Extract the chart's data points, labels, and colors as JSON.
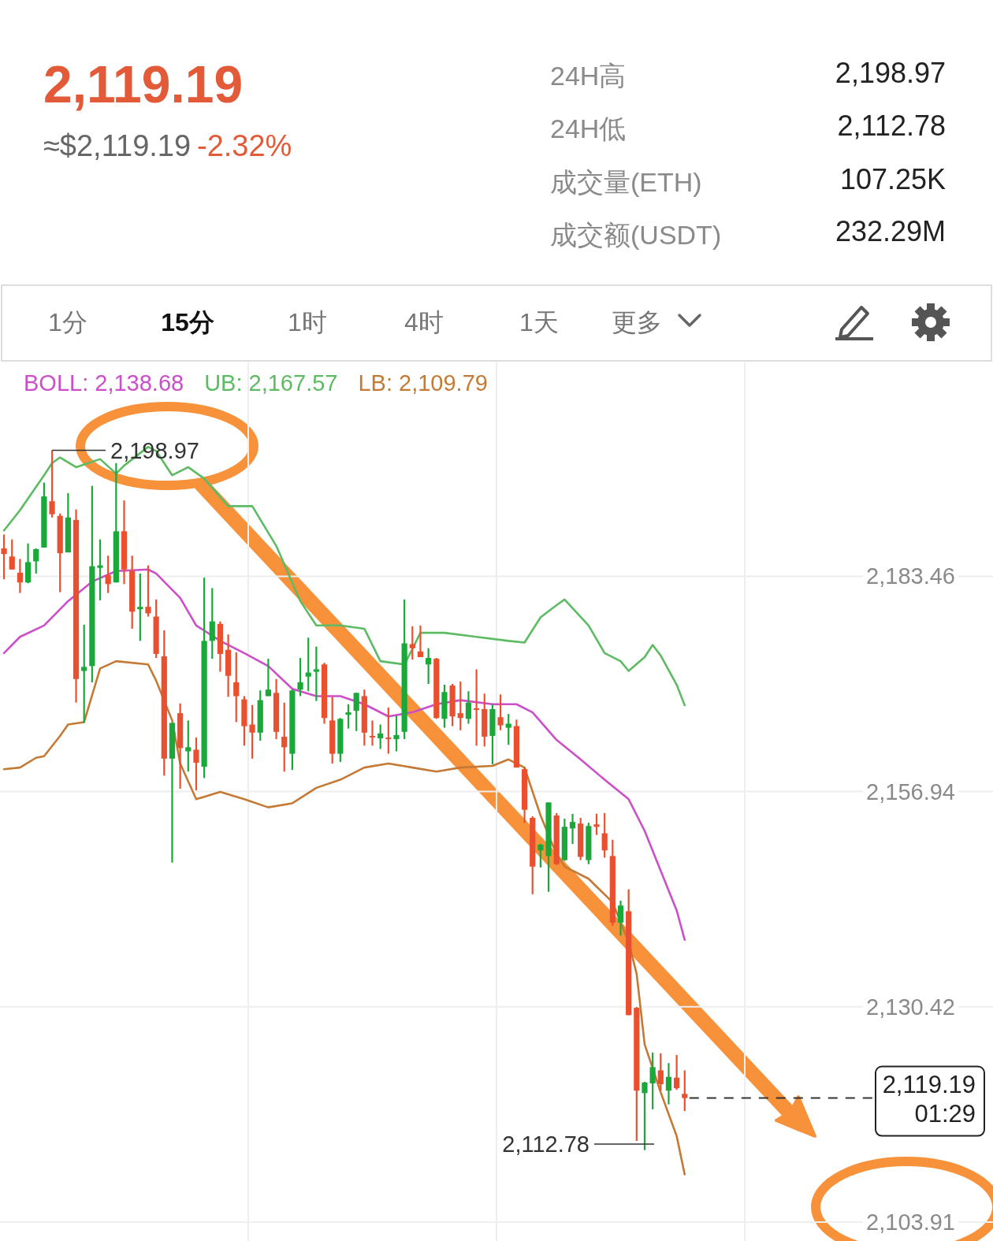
{
  "chart_data": {
    "type": "candlestick",
    "categories": [
      null,
      null,
      null,
      null,
      null,
      null,
      null,
      null,
      null,
      null,
      null,
      null,
      null,
      null,
      null,
      null,
      null,
      null,
      null,
      null,
      null,
      null,
      null,
      null,
      null,
      null,
      null,
      null,
      null,
      null,
      null,
      null,
      null,
      null,
      null,
      null,
      null,
      null,
      null,
      null,
      null,
      null,
      null,
      null,
      null,
      null,
      null,
      null,
      null,
      null,
      null,
      null,
      null,
      null,
      null,
      null,
      null,
      null,
      null,
      null,
      null,
      null,
      null,
      null,
      null,
      null,
      null,
      null,
      null,
      null,
      null,
      null,
      null,
      null,
      null,
      null,
      null,
      null,
      null,
      null,
      null,
      null,
      null,
      null,
      null,
      null,
      null,
      null,
      null,
      null,
      null,
      null,
      null,
      null,
      null,
      null,
      null,
      null,
      null,
      null,
      null,
      null,
      null,
      null,
      null,
      null,
      null,
      null,
      null,
      null,
      null,
      null,
      null,
      null,
      null,
      null,
      null,
      null,
      null,
      null,
      null,
      null,
      null,
      null
    ],
    "ohlc": [
      [
        2186.9,
        2188.6,
        2183.1,
        2186.2
      ],
      [
        2185.9,
        2188.0,
        2184.3,
        2184.3
      ],
      [
        2183.9,
        2185.6,
        2181.4,
        2182.7
      ],
      [
        2182.7,
        2187.5,
        2182.6,
        2185.2
      ],
      [
        2185.3,
        2186.9,
        2183.8,
        2186.8
      ],
      [
        2187.0,
        2195.0,
        2187.0,
        2193.3
      ],
      [
        2192.7,
        2198.97,
        2190.7,
        2191.1
      ],
      [
        2190.9,
        2191.2,
        2181.5,
        2186.3
      ],
      [
        2186.4,
        2193.7,
        2186.4,
        2190.7
      ],
      [
        2190.4,
        2191.7,
        2167.9,
        2170.8
      ],
      [
        2171.8,
        2177.5,
        2165.4,
        2172.3
      ],
      [
        2172.4,
        2194.6,
        2170.4,
        2184.7
      ],
      [
        2184.5,
        2188.0,
        2180.5,
        2184.8
      ],
      [
        2183.6,
        2186.0,
        2181.4,
        2182.5
      ],
      [
        2182.7,
        2197.4,
        2182.7,
        2189.0
      ],
      [
        2189.0,
        2192.8,
        2182.5,
        2184.3
      ],
      [
        2184.1,
        2186.0,
        2177.0,
        2179.1
      ],
      [
        2179.4,
        2183.8,
        2175.5,
        2179.7
      ],
      [
        2179.7,
        2184.8,
        2178.5,
        2178.9
      ],
      [
        2178.5,
        2180.6,
        2173.4,
        2173.9
      ],
      [
        2173.6,
        2176.8,
        2158.9,
        2161.0
      ],
      [
        2161.0,
        2165.4,
        2148.2,
        2165.4
      ],
      [
        2166.6,
        2167.8,
        2157.3,
        2162.3
      ],
      [
        2161.9,
        2165.7,
        2159.4,
        2162.4
      ],
      [
        2162.1,
        2163.6,
        2157.1,
        2160.5
      ],
      [
        2160.0,
        2183.3,
        2158.6,
        2175.5
      ],
      [
        2175.5,
        2182.0,
        2173.3,
        2177.9
      ],
      [
        2177.6,
        2177.9,
        2171.7,
        2173.9
      ],
      [
        2174.4,
        2176.3,
        2168.6,
        2171.2
      ],
      [
        2170.4,
        2174.1,
        2165.5,
        2168.7
      ],
      [
        2168.3,
        2168.7,
        2162.6,
        2165.0
      ],
      [
        2165.2,
        2167.6,
        2161.0,
        2164.2
      ],
      [
        2164.2,
        2169.4,
        2163.2,
        2168.2
      ],
      [
        2168.7,
        2173.3,
        2168.7,
        2169.5
      ],
      [
        2169.1,
        2170.8,
        2163.4,
        2164.3
      ],
      [
        2163.7,
        2167.9,
        2159.4,
        2162.4
      ],
      [
        2161.6,
        2169.5,
        2159.6,
        2169.4
      ],
      [
        2169.5,
        2173.4,
        2168.7,
        2170.4
      ],
      [
        2171.1,
        2175.9,
        2169.3,
        2171.6
      ],
      [
        2171.7,
        2174.8,
        2168.1,
        2172.0
      ],
      [
        2172.6,
        2172.8,
        2165.3,
        2166.0
      ],
      [
        2165.7,
        2168.6,
        2160.4,
        2161.6
      ],
      [
        2161.6,
        2166.0,
        2160.6,
        2165.9
      ],
      [
        2166.4,
        2167.7,
        2164.7,
        2166.7
      ],
      [
        2166.9,
        2169.1,
        2164.4,
        2169.1
      ],
      [
        2168.7,
        2169.5,
        2162.6,
        2164.2
      ],
      [
        2163.8,
        2165.7,
        2162.6,
        2163.7
      ],
      [
        2163.5,
        2165.2,
        2162.2,
        2164.1
      ],
      [
        2163.6,
        2167.3,
        2161.6,
        2163.4
      ],
      [
        2163.4,
        2166.3,
        2161.9,
        2163.9
      ],
      [
        2164.3,
        2180.6,
        2163.4,
        2175.2
      ],
      [
        2175.1,
        2177.3,
        2173.2,
        2174.6
      ],
      [
        2174.2,
        2177.4,
        2173.5,
        2173.5
      ],
      [
        2172.6,
        2174.6,
        2170.2,
        2173.4
      ],
      [
        2173.3,
        2173.4,
        2165.9,
        2166.0
      ],
      [
        2165.9,
        2170.1,
        2164.8,
        2169.2
      ],
      [
        2170.0,
        2170.2,
        2165.0,
        2166.2
      ],
      [
        2166.6,
        2170.5,
        2164.5,
        2166.0
      ],
      [
        2165.9,
        2169.3,
        2165.3,
        2167.9
      ],
      [
        2167.2,
        2172.0,
        2162.6,
        2167.0
      ],
      [
        2167.1,
        2169.0,
        2162.5,
        2163.7
      ],
      [
        2163.8,
        2167.7,
        2160.3,
        2167.1
      ],
      [
        2166.1,
        2168.9,
        2164.5,
        2165.1
      ],
      [
        2164.8,
        2166.5,
        2162.7,
        2165.3
      ],
      [
        2165.0,
        2165.8,
        2159.9,
        2159.9
      ],
      [
        2159.7,
        2159.9,
        2153.1,
        2154.7
      ],
      [
        2153.7,
        2153.9,
        2144.3,
        2147.7
      ],
      [
        2149.7,
        2150.5,
        2147.6,
        2150.4
      ],
      [
        2149.0,
        2155.6,
        2144.6,
        2155.6
      ],
      [
        2154.0,
        2154.3,
        2147.9,
        2148.0
      ],
      [
        2148.5,
        2153.6,
        2148.4,
        2152.6
      ],
      [
        2152.4,
        2154.2,
        2150.5,
        2153.2
      ],
      [
        2153.0,
        2153.7,
        2148.5,
        2148.9
      ],
      [
        2148.5,
        2153.1,
        2148.0,
        2152.7
      ],
      [
        2152.9,
        2154.2,
        2151.6,
        2152.6
      ],
      [
        2151.8,
        2154.3,
        2148.8,
        2149.7
      ],
      [
        2149.0,
        2151.0,
        2140.4,
        2140.8
      ],
      [
        2140.8,
        2143.5,
        2139.2,
        2142.9
      ],
      [
        2142.2,
        2144.9,
        2129.4,
        2129.4
      ],
      [
        2130.3,
        2130.4,
        2113.9,
        2120.1
      ],
      [
        2119.8,
        2121.2,
        2112.78,
        2121.1
      ],
      [
        2121.0,
        2124.8,
        2117.8,
        2123.0
      ],
      [
        2122.6,
        2124.7,
        2120.1,
        2120.9
      ],
      [
        2120.1,
        2123.5,
        2118.4,
        2121.8
      ],
      [
        2121.7,
        2124.5,
        2120.2,
        2120.4
      ],
      [
        2119.7,
        2122.6,
        2117.6,
        2119.19
      ],
      null,
      null,
      null,
      null,
      null,
      null,
      null,
      null,
      null,
      null,
      null,
      null,
      null,
      null,
      null,
      null,
      null,
      null,
      null,
      null,
      null,
      null,
      null,
      null,
      null,
      null,
      null,
      null,
      null,
      null,
      null,
      null,
      null,
      null,
      null,
      null,
      null,
      null
    ],
    "series": [
      {
        "name": "BOLL: 2,138.68",
        "type": "line",
        "color": "#cc4fc9",
        "values": [
          2174.0,
          null,
          2176.0,
          null,
          null,
          2177.4,
          null,
          null,
          2180.4,
          null,
          null,
          2182.8,
          null,
          null,
          2184.1,
          null,
          null,
          null,
          2184.3,
          2183.8,
          null,
          null,
          2180.8,
          null,
          2177.4,
          null,
          null,
          2175.5,
          null,
          null,
          2174.0,
          null,
          null,
          2172.4,
          null,
          null,
          2169.6,
          null,
          null,
          2168.7,
          null,
          null,
          2168.7,
          null,
          null,
          2167.7,
          null,
          null,
          2166.2,
          null,
          null,
          2166.7,
          null,
          null,
          2167.7,
          null,
          null,
          2168.2,
          null,
          null,
          null,
          2167.7,
          null,
          null,
          2167.7,
          null,
          2166.7,
          null,
          null,
          2163.3,
          null,
          null,
          2160.9,
          null,
          null,
          2158.4,
          null,
          null,
          2156.0,
          null,
          2152.1,
          null,
          2147.2,
          null,
          2142.3,
          2138.68,
          null,
          null,
          null,
          null,
          null,
          null,
          null,
          null,
          null,
          null,
          null,
          null,
          null,
          null,
          null,
          null,
          null,
          null,
          null,
          null,
          null,
          null,
          null,
          null,
          null,
          null,
          null,
          null,
          null,
          null,
          null,
          null,
          null,
          null,
          null,
          null,
          null,
          null
        ]
      },
      {
        "name": "UB: 2,167.57",
        "type": "line",
        "color": "#5dbb63",
        "values": [
          2189.1,
          null,
          2191.6,
          null,
          null,
          2195.9,
          2197.4,
          2198.1,
          null,
          2196.9,
          null,
          null,
          2197.9,
          null,
          2196.1,
          2197.1,
          null,
          null,
          2199.4,
          2198.9,
          null,
          2195.9,
          null,
          2196.9,
          null,
          2195.5,
          null,
          null,
          2192.1,
          null,
          null,
          2192.1,
          null,
          null,
          2187.2,
          null,
          null,
          2180.4,
          null,
          2177.4,
          null,
          null,
          2177.4,
          null,
          null,
          2177.0,
          null,
          2173.0,
          null,
          null,
          2172.6,
          2174.5,
          2176.5,
          null,
          null,
          2176.5,
          null,
          null,
          null,
          2176.0,
          null,
          null,
          null,
          2175.5,
          null,
          2175.3,
          null,
          2178.4,
          null,
          2179.9,
          2180.6,
          null,
          null,
          2177.4,
          null,
          2174.0,
          null,
          2173.0,
          2171.8,
          null,
          2173.5,
          2175.0,
          2173.7,
          null,
          2170.1,
          2167.57,
          null,
          null,
          null,
          null,
          null,
          null,
          null,
          null,
          null,
          null,
          null,
          null,
          null,
          null,
          null,
          null,
          null,
          null,
          null,
          null,
          null,
          null,
          null,
          null,
          null,
          null,
          null,
          null,
          null,
          null,
          null,
          null,
          null,
          null,
          null,
          null,
          null,
          null
        ]
      },
      {
        "name": "LB: 2,109.79",
        "type": "line",
        "color": "#c47a35",
        "values": [
          2159.7,
          null,
          2159.9,
          null,
          2161.1,
          2161.3,
          null,
          2163.8,
          2165.2,
          null,
          2165.5,
          null,
          2172.1,
          null,
          2173.0,
          null,
          null,
          null,
          2172.6,
          2170.6,
          null,
          2165.7,
          2160.4,
          null,
          2156.0,
          null,
          null,
          2156.9,
          null,
          null,
          2156.0,
          null,
          null,
          2155.0,
          null,
          null,
          2155.5,
          null,
          null,
          2157.4,
          null,
          null,
          2158.4,
          null,
          null,
          2159.9,
          null,
          null,
          2160.4,
          null,
          null,
          2159.9,
          null,
          null,
          2159.4,
          null,
          null,
          2159.9,
          null,
          null,
          null,
          2160.1,
          null,
          2160.9,
          null,
          2159.9,
          null,
          2154.0,
          null,
          2149.2,
          2147.7,
          null,
          null,
          2146.2,
          null,
          null,
          2143.3,
          null,
          2138.4,
          2134.5,
          2125.8,
          null,
          2119.9,
          null,
          2114.5,
          2109.79,
          null,
          null,
          null,
          null,
          null,
          null,
          null,
          null,
          null,
          null,
          null,
          null,
          null,
          null,
          null,
          null,
          null,
          null,
          null,
          null,
          null,
          null,
          null,
          null,
          null,
          null,
          null,
          null,
          null,
          null,
          null,
          null,
          null,
          null,
          null,
          null,
          null,
          null
        ]
      }
    ],
    "ylim": [
      2103.91,
      2209.8
    ],
    "yticks": [
      {
        "value": 2183.46,
        "label": "2,183.46"
      },
      {
        "value": 2156.94,
        "label": "2,156.94"
      },
      {
        "value": 2130.42,
        "label": "2,130.42"
      },
      {
        "value": 2103.91,
        "label": "2,103.91"
      }
    ],
    "tick_labels": "y",
    "grid": true,
    "ref_lines": [
      {
        "axis": "y",
        "value": 2119.19,
        "label": "2,119.19\n01:29",
        "line_style": "dashed"
      }
    ],
    "annotations": [
      "2,119.19",
      "≈$2,119.19",
      "-2.32%",
      "24H高",
      "2,198.97",
      "24H低",
      "2,112.78",
      "成交量(ETH)",
      "107.25K",
      "成交额(USDT)",
      "232.29M",
      "1分",
      "15分",
      "1时",
      "4时",
      "1天",
      "更多",
      {
        "text": "2,198.97",
        "y": 2198.97
      },
      "2,112.78"
    ]
  }
}
